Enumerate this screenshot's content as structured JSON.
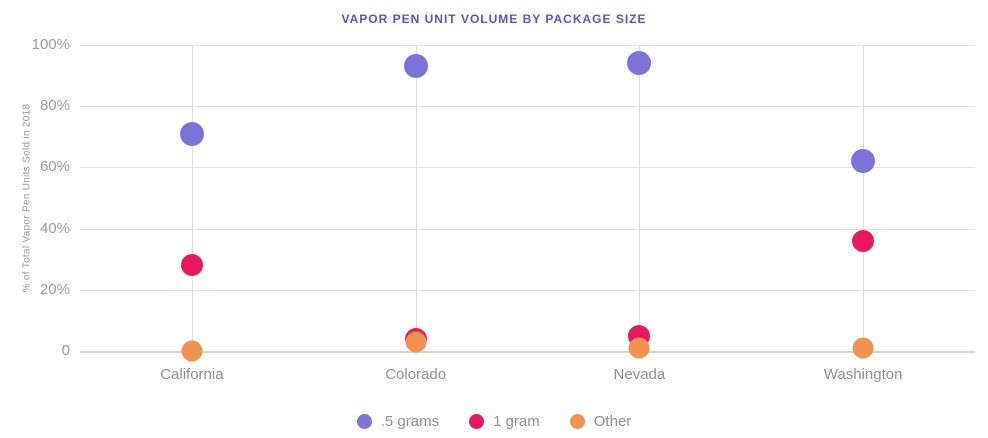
{
  "chart_data": {
    "type": "scatter",
    "title": "VAPOR PEN UNIT VOLUME BY PACKAGE SIZE",
    "ylabel": "% of Total Vapor Pen Units Sold in 2018",
    "categories": [
      "California",
      "Colorado",
      "Nevada",
      "Washington"
    ],
    "series": [
      {
        "name": ".5 grams",
        "color": "#7b73d8",
        "diameter": 24,
        "values": [
          71,
          93,
          94,
          62
        ]
      },
      {
        "name": "1 gram",
        "color": "#e8185e",
        "diameter": 22,
        "values": [
          28,
          4,
          5,
          36
        ]
      },
      {
        "name": "Other",
        "color": "#f1924f",
        "diameter": 21,
        "values": [
          0,
          3,
          1,
          1
        ]
      }
    ],
    "y_ticks": [
      "0",
      "20%",
      "40%",
      "60%",
      "80%",
      "100%"
    ],
    "y_tick_values": [
      0,
      20,
      40,
      60,
      80,
      100
    ],
    "ylim": [
      0,
      100
    ],
    "grid": true,
    "legend_position": "bottom"
  }
}
